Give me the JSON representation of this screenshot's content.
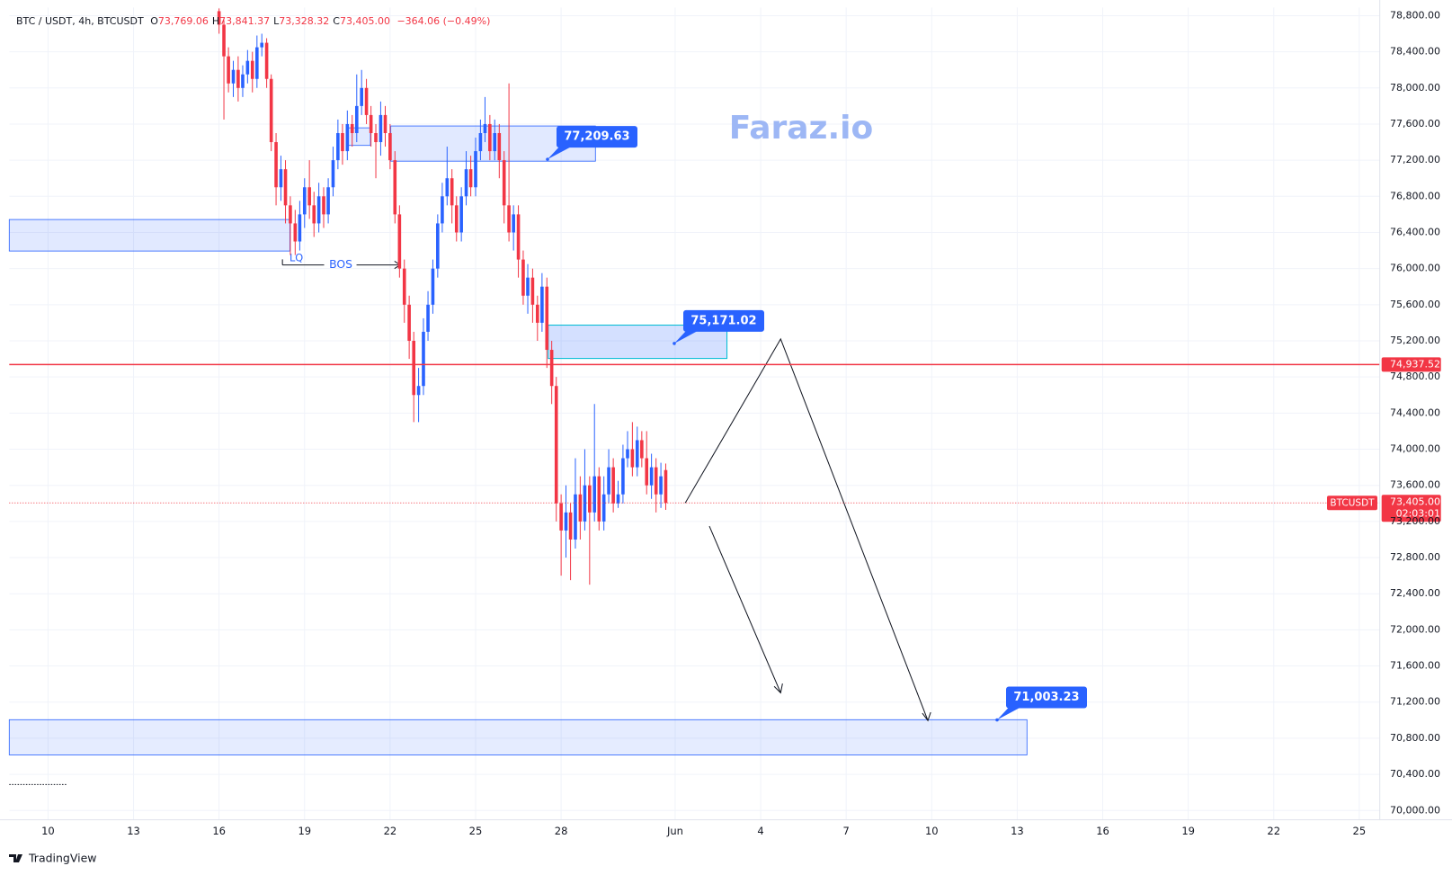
{
  "chart_data": {
    "type": "candlestick",
    "header": {
      "symbol": "BTC / USDT, 4h, BTCUSDT",
      "ohlc": [
        {
          "key": "O",
          "value": "73,769.06"
        },
        {
          "key": "H",
          "value": "73,841.37"
        },
        {
          "key": "L",
          "value": "73,328.32"
        },
        {
          "key": "C",
          "value": "73,405.00"
        }
      ],
      "change": "−364.06 (−0.49%)"
    },
    "watermark": "Faraz.io",
    "annotations": {
      "bos": "BOS",
      "lq": "LQ"
    },
    "branding": "TradingView",
    "up_color": "#2962ff",
    "down_color": "#f23645",
    "grid": true,
    "xlim": [
      8.64,
      56.72
    ],
    "ylim": [
      69897,
      78892
    ],
    "xticks": [
      10,
      13,
      16,
      19,
      22,
      25,
      28,
      {
        "value": 32,
        "label": "Jun"
      },
      {
        "value": 35,
        "label": "4"
      },
      {
        "value": 38,
        "label": "7"
      },
      {
        "value": 41,
        "label": "10"
      },
      {
        "value": 44,
        "label": "13"
      },
      {
        "value": 47,
        "label": "16"
      },
      {
        "value": 50,
        "label": "19"
      },
      {
        "value": 53,
        "label": "22"
      },
      {
        "value": 56,
        "label": "25"
      }
    ],
    "yticks": [
      {
        "value": 70000,
        "label": "70,000.00"
      },
      {
        "value": 70400,
        "label": "70,400.00"
      },
      {
        "value": 70800,
        "label": "70,800.00"
      },
      {
        "value": 71200,
        "label": "71,200.00"
      },
      {
        "value": 71600,
        "label": "71,600.00"
      },
      {
        "value": 72000,
        "label": "72,000.00"
      },
      {
        "value": 72400,
        "label": "72,400.00"
      },
      {
        "value": 72800,
        "label": "72,800.00"
      },
      {
        "value": 73200,
        "label": "73,200.00"
      },
      {
        "value": 73600,
        "label": "73,600.00"
      },
      {
        "value": 74000,
        "label": "74,000.00"
      },
      {
        "value": 74400,
        "label": "74,400.00"
      },
      {
        "value": 74800,
        "label": "74,800.00"
      },
      {
        "value": 75200,
        "label": "75,200.00"
      },
      {
        "value": 75600,
        "label": "75,600.00"
      },
      {
        "value": 76000,
        "label": "76,000.00"
      },
      {
        "value": 76400,
        "label": "76,400.00"
      },
      {
        "value": 76800,
        "label": "76,800.00"
      },
      {
        "value": 77200,
        "label": "77,200.00"
      },
      {
        "value": 77600,
        "label": "77,600.00"
      },
      {
        "value": 78000,
        "label": "78,000.00"
      },
      {
        "value": 78400,
        "label": "78,400.00"
      },
      {
        "value": 78800,
        "label": "78,800.00"
      }
    ],
    "candles": {
      "x": [
        16,
        16.17,
        16.33,
        16.5,
        16.67,
        16.83,
        17,
        17.17,
        17.33,
        17.5,
        17.67,
        17.83,
        18,
        18.17,
        18.33,
        18.5,
        18.67,
        18.83,
        19,
        19.17,
        19.33,
        19.5,
        19.67,
        19.83,
        20,
        20.17,
        20.33,
        20.5,
        20.67,
        20.83,
        21,
        21.17,
        21.33,
        21.5,
        21.67,
        21.83,
        22,
        22.17,
        22.33,
        22.5,
        22.67,
        22.83,
        23,
        23.17,
        23.33,
        23.5,
        23.67,
        23.83,
        24,
        24.17,
        24.33,
        24.5,
        24.67,
        24.83,
        25,
        25.17,
        25.33,
        25.5,
        25.67,
        25.83,
        26,
        26.17,
        26.33,
        26.5,
        26.67,
        26.83,
        27,
        27.17,
        27.33,
        27.5,
        27.67,
        27.83,
        28,
        28.17,
        28.33,
        28.5,
        28.67,
        28.83,
        29,
        29.17,
        29.33,
        29.5,
        29.67,
        29.83,
        30,
        30.17,
        30.33,
        30.5,
        30.67,
        30.83,
        31,
        31.17,
        31.33,
        31.5,
        31.67
      ],
      "open": [
        78850,
        78700,
        78350,
        78050,
        78200,
        78000,
        78150,
        78300,
        78100,
        78450,
        78500,
        78100,
        77400,
        76900,
        77100,
        76700,
        76500,
        76300,
        76600,
        76900,
        76700,
        76500,
        76800,
        76600,
        76900,
        77200,
        77500,
        77300,
        77600,
        77500,
        77800,
        78000,
        77700,
        77500,
        77400,
        77700,
        77500,
        77200,
        76600,
        76000,
        75600,
        75200,
        74600,
        74700,
        75300,
        75600,
        76000,
        76500,
        76800,
        77000,
        76700,
        76400,
        76800,
        77100,
        76900,
        77300,
        77500,
        77600,
        77300,
        77500,
        77200,
        76700,
        76400,
        76600,
        76100,
        75700,
        75900,
        75600,
        75400,
        75800,
        75100,
        74700,
        73400,
        73100,
        73300,
        73000,
        73500,
        73200,
        73600,
        73300,
        73700,
        73200,
        73500,
        73800,
        73400,
        73500,
        73900,
        74000,
        73800,
        74100,
        73900,
        73600,
        73800,
        73500,
        73769.06
      ],
      "high": [
        78880,
        78750,
        78450,
        78300,
        78350,
        78250,
        78420,
        78400,
        78580,
        78600,
        78550,
        78150,
        77500,
        77250,
        77200,
        76800,
        76650,
        76750,
        77000,
        77200,
        76850,
        76950,
        76900,
        77000,
        77350,
        77650,
        77600,
        77750,
        77700,
        78150,
        78200,
        78100,
        77800,
        77600,
        77850,
        77800,
        77600,
        77300,
        76700,
        76100,
        75700,
        75300,
        74900,
        75450,
        75750,
        76100,
        76600,
        76950,
        77350,
        77100,
        76800,
        76900,
        77300,
        77250,
        77450,
        77650,
        77900,
        77700,
        77650,
        77600,
        77300,
        78050,
        76700,
        76700,
        76200,
        76050,
        76000,
        75700,
        75950,
        75900,
        75200,
        74800,
        73500,
        73600,
        73400,
        73900,
        73700,
        74000,
        73700,
        74500,
        73800,
        73700,
        74000,
        73900,
        73650,
        74050,
        74200,
        74300,
        74250,
        74200,
        74200,
        73950,
        73900,
        73850,
        73841.37
      ],
      "low": [
        78600,
        77650,
        77950,
        77900,
        77850,
        77900,
        78050,
        77950,
        78000,
        78350,
        78000,
        77300,
        76700,
        76750,
        76500,
        76150,
        76150,
        76200,
        76450,
        76550,
        76350,
        76400,
        76450,
        76500,
        76800,
        77100,
        77150,
        77200,
        77350,
        77400,
        77700,
        77600,
        77350,
        77000,
        77250,
        77350,
        77100,
        76500,
        75900,
        75400,
        75000,
        74300,
        74300,
        74600,
        75200,
        75500,
        75900,
        76400,
        76700,
        76500,
        76300,
        76300,
        76700,
        76800,
        76800,
        77200,
        77400,
        77200,
        77200,
        77000,
        76500,
        76300,
        76200,
        75900,
        75600,
        75500,
        75400,
        75200,
        75300,
        74900,
        74500,
        73200,
        72600,
        72800,
        72550,
        72900,
        73000,
        73100,
        72500,
        73200,
        73100,
        73100,
        73400,
        73300,
        73350,
        73400,
        73800,
        73700,
        73700,
        73800,
        73500,
        73450,
        73300,
        73350,
        73328.32
      ],
      "close": [
        78700,
        78350,
        78050,
        78200,
        78000,
        78150,
        78300,
        78100,
        78450,
        78500,
        78100,
        77400,
        76900,
        77100,
        76700,
        76500,
        76300,
        76600,
        76900,
        76700,
        76500,
        76800,
        76600,
        76900,
        77200,
        77500,
        77300,
        77600,
        77500,
        77800,
        78000,
        77700,
        77500,
        77400,
        77700,
        77500,
        77200,
        76600,
        76000,
        75600,
        75200,
        74600,
        74700,
        75300,
        75600,
        76000,
        76500,
        76800,
        77000,
        76700,
        76400,
        76800,
        77100,
        76900,
        77300,
        77500,
        77600,
        77300,
        77500,
        77200,
        76700,
        76400,
        76600,
        76100,
        75700,
        75900,
        75600,
        75400,
        75800,
        75100,
        74700,
        73400,
        73100,
        73300,
        73000,
        73500,
        73200,
        73600,
        73300,
        73700,
        73200,
        73500,
        73800,
        73400,
        73500,
        73900,
        74000,
        73800,
        74100,
        73900,
        73600,
        73800,
        73500,
        73700,
        73405
      ]
    },
    "callouts": [
      {
        "value": 77209.63,
        "label": "77,209.63"
      },
      {
        "value": 75171.02,
        "label": "75,171.02"
      },
      {
        "value": 71003.23,
        "label": "71,003.23"
      }
    ],
    "horizontal_line": {
      "value": 74937.52,
      "label": "74,937.52",
      "color": "#f23645"
    },
    "last_price": {
      "value": 73405,
      "label": "73,405.00",
      "symbol": "BTCUSDT",
      "countdown": "02:03:01",
      "color": "#f23645"
    }
  }
}
